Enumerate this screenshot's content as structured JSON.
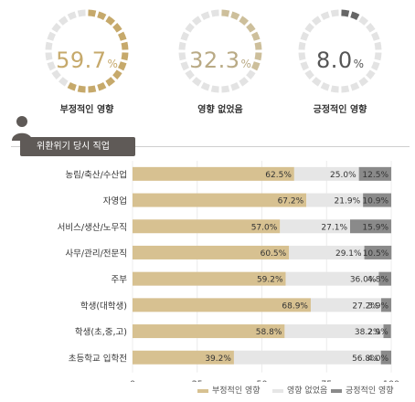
{
  "summary": [
    {
      "value": "59.7",
      "unit": "%",
      "caption": "부정적인 영향",
      "fraction": 0.597,
      "color": "#c6a96b",
      "text_color": "#c6a96b"
    },
    {
      "value": "32.3",
      "unit": "%",
      "caption": "영향 없었음",
      "fraction": 0.323,
      "color": "#cdbf9b",
      "text_color": "#b9aa85"
    },
    {
      "value": "8.0",
      "unit": "%",
      "caption": "긍정적인 영향",
      "fraction": 0.08,
      "color": "#666666",
      "text_color": "#555555"
    }
  ],
  "section_title": "위환위기 당시 직업",
  "icons": {
    "section": "person-icon"
  },
  "colors": {
    "negative": "#d7c191",
    "neutral": "#e6e6e6",
    "positive": "#8a8a8a",
    "ring_empty": "#e3e3e3"
  },
  "legend": [
    {
      "label": "부정적인 영향",
      "color": "#d7c191"
    },
    {
      "label": "영향 없었음",
      "color": "#e6e6e6"
    },
    {
      "label": "긍정적인 영향",
      "color": "#8a8a8a"
    }
  ],
  "chart_data": {
    "type": "bar",
    "stacked": true,
    "orientation": "horizontal",
    "categories": [
      "농림/축산/수산업",
      "자영업",
      "서비스/생산/노무직",
      "사무/관리/전문직",
      "주부",
      "학생(대학생)",
      "학생(초,중,고)",
      "초등학교 입학전"
    ],
    "series": [
      {
        "name": "부정적인 영향",
        "values": [
          62.5,
          67.2,
          57.0,
          60.5,
          59.2,
          68.9,
          58.8,
          39.2
        ]
      },
      {
        "name": "영향 없었음",
        "values": [
          25.0,
          21.9,
          27.1,
          29.1,
          36.0,
          27.2,
          38.2,
          56.8
        ]
      },
      {
        "name": "긍정적인 영향",
        "values": [
          12.5,
          10.9,
          15.9,
          10.5,
          4.8,
          3.9,
          2.9,
          4.0
        ]
      }
    ],
    "xlim": [
      0,
      100
    ],
    "xticks": [
      "0",
      "25",
      "50",
      "75",
      "100"
    ],
    "grid": true,
    "legend_position": "bottom-right"
  }
}
